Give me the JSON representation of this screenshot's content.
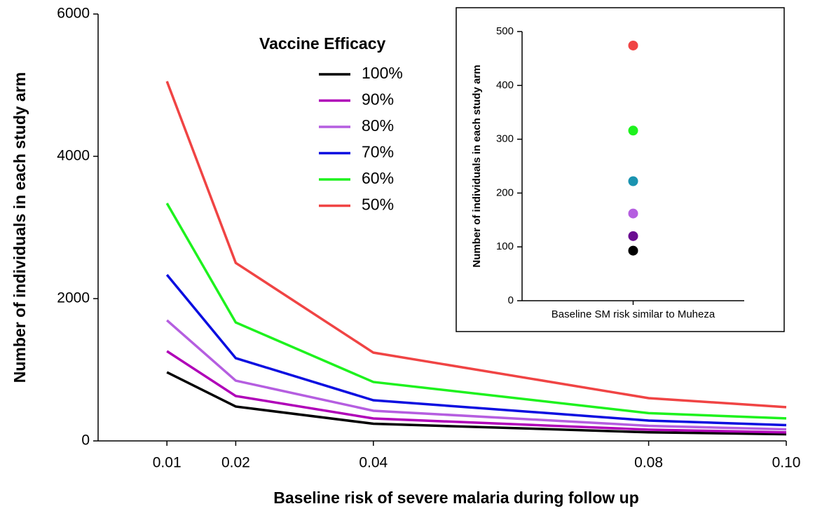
{
  "chart_data": [
    {
      "type": "line",
      "x_label": "Baseline risk of severe malaria during follow up",
      "y_label": "Number of individuals in each study arm",
      "legend_title": "Vaccine Efficacy",
      "x": [
        0.01,
        0.02,
        0.04,
        0.08,
        {
          "value": 0.1,
          "label": "0.10"
        }
      ],
      "xlim": [
        0,
        0.1
      ],
      "xticks": [
        0.01,
        0.02,
        0.04,
        0.08,
        {
          "value": 0.1,
          "label": "0.10"
        }
      ],
      "ylim": [
        0,
        6000
      ],
      "yticks": [
        0,
        2000,
        4000,
        6000
      ],
      "series": [
        {
          "name": "100%",
          "color": "#000000",
          "values": [
            965,
            483,
            241,
            121,
            93
          ]
        },
        {
          "name": "90%",
          "color": "#b000b8",
          "values": [
            1261,
            631,
            315,
            158,
            120
          ]
        },
        {
          "name": "80%",
          "color": "#b55ee0",
          "values": [
            1695,
            847,
            424,
            212,
            162
          ]
        },
        {
          "name": "70%",
          "color": "#0b0ee0",
          "values": [
            2335,
            1163,
            571,
            286,
            222
          ]
        },
        {
          "name": "60%",
          "color": "#1ef21e",
          "values": [
            3340,
            1665,
            828,
            390,
            316
          ]
        },
        {
          "name": "50%",
          "color": "#f04444",
          "values": [
            5054,
            2502,
            1241,
            601,
            474
          ]
        }
      ]
    },
    {
      "type": "scatter",
      "y_label": "Number of individuals in each study arm",
      "categories": [
        "Baseline SM risk similar to Muheza"
      ],
      "ylim": [
        0,
        500
      ],
      "yticks": [
        0,
        100,
        200,
        300,
        400,
        500
      ],
      "series": [
        {
          "color": "#f04444",
          "values": [
            474
          ]
        },
        {
          "color": "#1ef21e",
          "values": [
            316
          ]
        },
        {
          "color": "#1a93b0",
          "values": [
            222
          ]
        },
        {
          "color": "#b55ee0",
          "values": [
            162
          ]
        },
        {
          "color": "#6a0d91",
          "values": [
            120
          ]
        },
        {
          "color": "#000000",
          "values": [
            93
          ]
        }
      ]
    }
  ]
}
